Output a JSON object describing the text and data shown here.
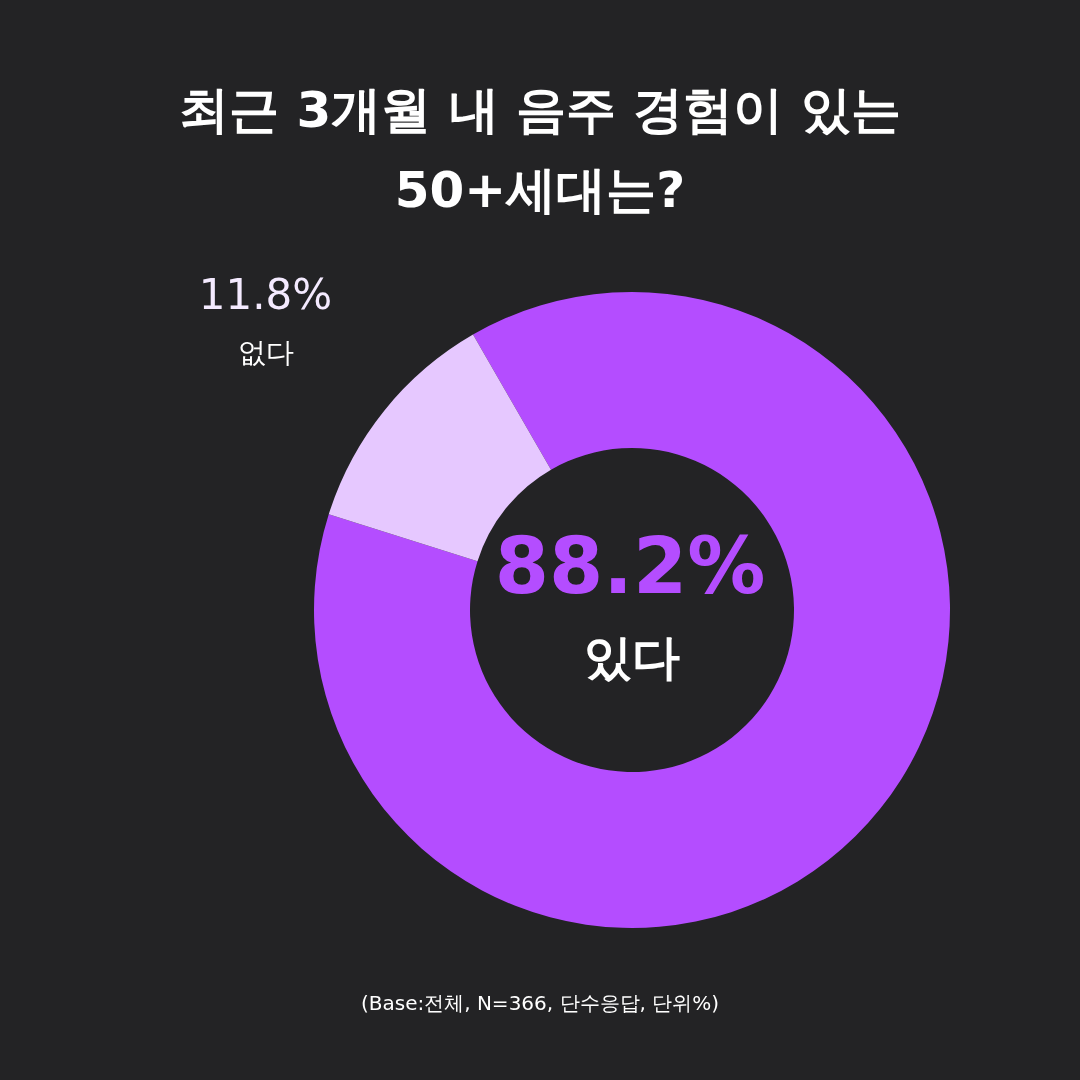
{
  "chart_data": {
    "type": "donut",
    "title": "최근 3개월 내 음주 경험이 있는 50+세대는?",
    "categories": [
      "있다",
      "없다"
    ],
    "values": [
      88.2,
      11.8
    ],
    "colors": [
      "#b44dff",
      "#e6c8ff"
    ],
    "value_labels": [
      "88.2%",
      "11.8%"
    ],
    "annotations": [
      "(Base:전체, N=366, 단수응답, 단위%)"
    ]
  }
}
